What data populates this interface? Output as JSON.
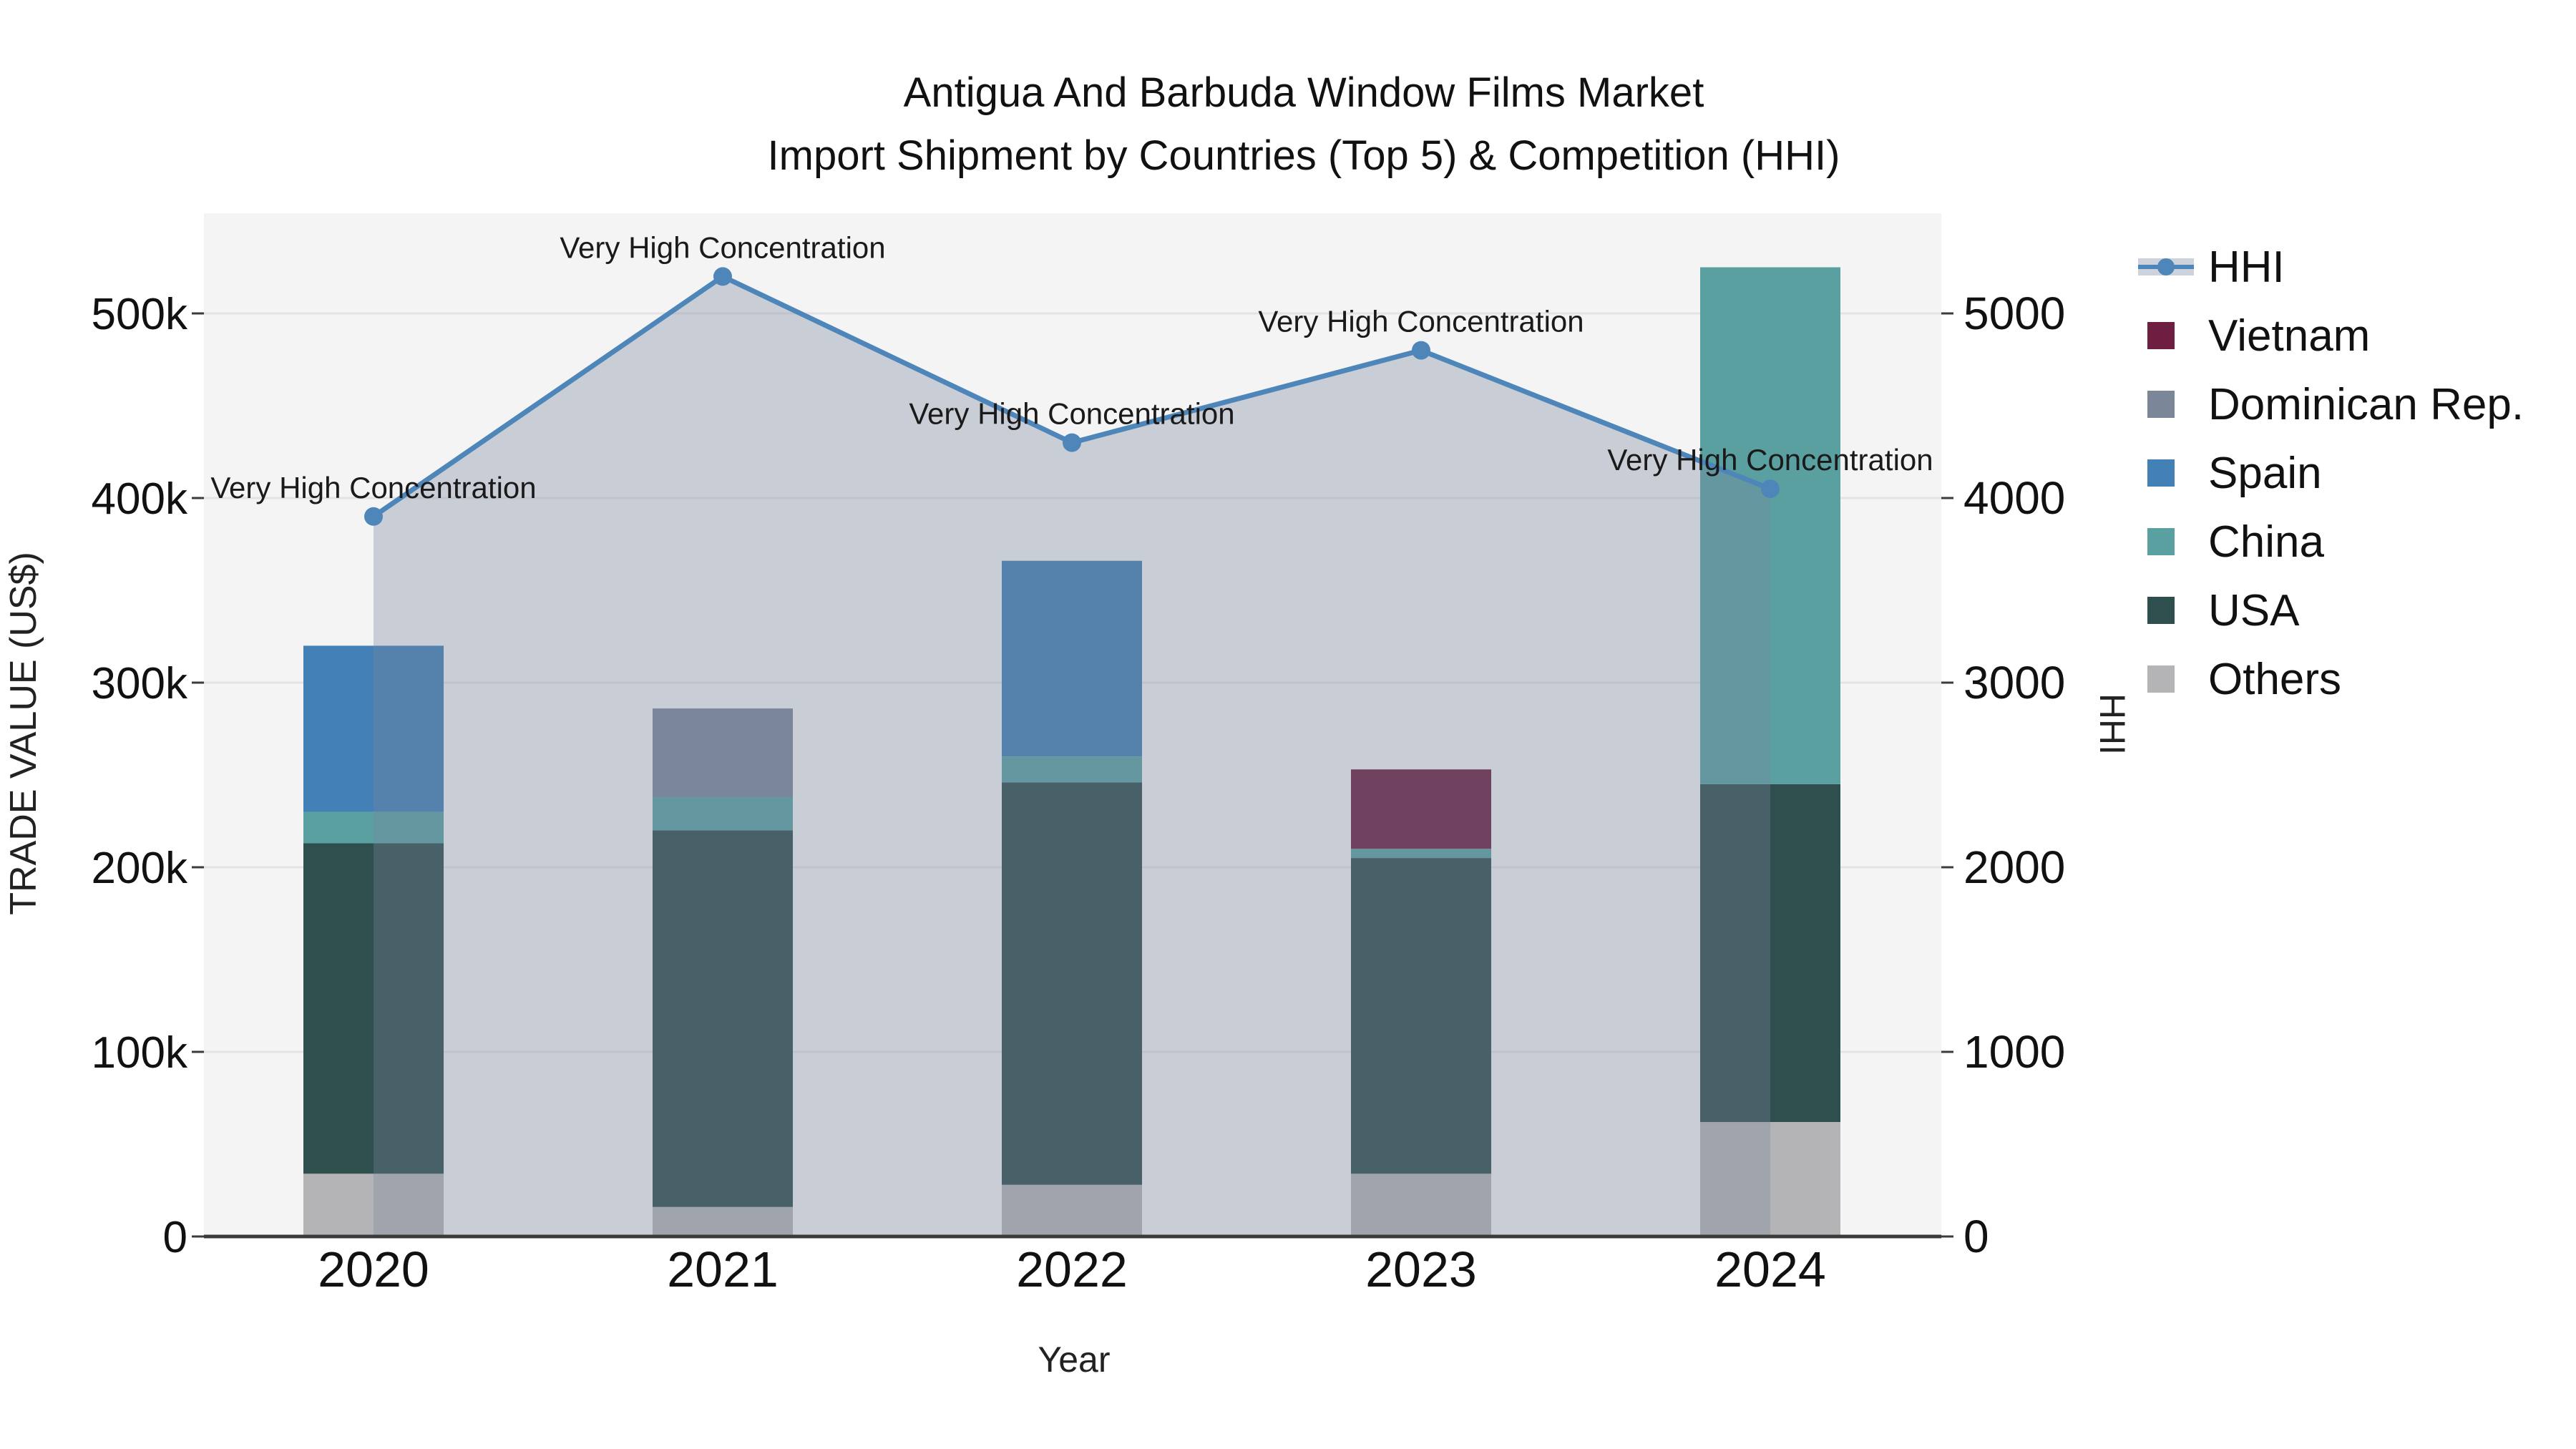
{
  "title": {
    "line1": "Antigua And Barbuda Window Films Market",
    "line2": "Import Shipment by Countries (Top 5) & Competition (HHI)"
  },
  "legend": {
    "items": [
      {
        "label": "HHI",
        "type": "line",
        "color": "#4e86ba",
        "band_color": "#ccd3dc"
      },
      {
        "label": "Vietnam",
        "type": "swatch",
        "color": "#6e1e40"
      },
      {
        "label": "Dominican Rep.",
        "type": "swatch",
        "color": "#7b8799"
      },
      {
        "label": "Spain",
        "type": "swatch",
        "color": "#4380b5"
      },
      {
        "label": "China",
        "type": "swatch",
        "color": "#5ba0a1"
      },
      {
        "label": "USA",
        "type": "swatch",
        "color": "#2f4e4e"
      },
      {
        "label": "Others",
        "type": "swatch",
        "color": "#b4b4b6"
      }
    ]
  },
  "colors": {
    "page_bg": "#ffffff",
    "plot_bg": "#f4f4f4",
    "grid": "#e3e3e5",
    "axis_line": "#3b3b3b",
    "tick_text": "#111111",
    "annotation_text": "#1a1a1a",
    "area_fill": "#77869d",
    "area_opacity": 0.35,
    "hhi_line": "#4e86ba"
  },
  "chart_data": {
    "type": "bar+line",
    "stacked": true,
    "title": "Antigua And Barbuda Window Films Market — Import Shipment by Countries (Top 5) & Competition (HHI)",
    "categories": [
      "2020",
      "2021",
      "2022",
      "2023",
      "2024"
    ],
    "x_label": "Year",
    "bar_series": [
      {
        "name": "Others",
        "color": "#b4b4b6",
        "values": [
          34000,
          16000,
          28000,
          34000,
          62000
        ]
      },
      {
        "name": "USA",
        "color": "#2f4e4e",
        "values": [
          179000,
          204000,
          218000,
          171000,
          183000
        ]
      },
      {
        "name": "China",
        "color": "#5ba0a1",
        "values": [
          17000,
          18000,
          14000,
          5000,
          280000
        ]
      },
      {
        "name": "Vietnam",
        "color": "#6e1e40",
        "values": [
          0,
          0,
          0,
          43000,
          0
        ]
      },
      {
        "name": "Dominican Rep.",
        "color": "#7b8799",
        "values": [
          0,
          48000,
          0,
          0,
          0
        ]
      },
      {
        "name": "Spain",
        "color": "#4380b5",
        "values": [
          90000,
          0,
          106000,
          0,
          0
        ]
      }
    ],
    "bar_totals": [
      320000,
      286000,
      366000,
      253000,
      525000
    ],
    "line_series": {
      "name": "HHI",
      "axis": "right",
      "color": "#4e86ba",
      "values": [
        3900,
        5200,
        4300,
        4800,
        4050
      ],
      "area_fill": true
    },
    "annotations": [
      "Very High Concentration",
      "Very High Concentration",
      "Very High Concentration",
      "Very High Concentration",
      "Very High Concentration"
    ],
    "y_left": {
      "label": "TRADE VALUE (US$)",
      "tick_values": [
        0,
        100000,
        200000,
        300000,
        400000,
        500000
      ],
      "tick_labels": [
        "0",
        "100k",
        "200k",
        "300k",
        "400k",
        "500k"
      ],
      "range": [
        0,
        553000
      ]
    },
    "y_right": {
      "label": "HHI",
      "tick_values": [
        0,
        1000,
        2000,
        3000,
        4000,
        5000
      ],
      "tick_labels": [
        "0",
        "1000",
        "2000",
        "3000",
        "4000",
        "5000"
      ],
      "range": [
        0,
        5530
      ]
    },
    "grid": "horizontal",
    "legend_position": "right"
  }
}
